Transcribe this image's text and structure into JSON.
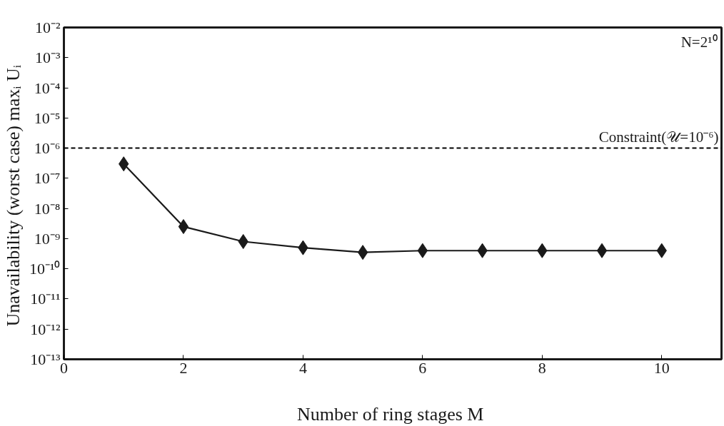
{
  "chart_data": {
    "type": "line",
    "xlabel": "Number of ring stages  M",
    "ylabel": "Unavailability (worst case)  maxᵢ Uᵢ",
    "x": [
      1,
      2,
      3,
      4,
      5,
      6,
      7,
      8,
      9,
      10
    ],
    "series": [
      {
        "color": "#1a1a1a",
        "values": [
          3e-07,
          2.5e-09,
          8e-10,
          5e-10,
          3.5e-10,
          4e-10,
          4e-10,
          4e-10,
          4e-10,
          4e-10
        ]
      }
    ],
    "xlim": [
      0,
      11
    ],
    "xticks": [
      0,
      2,
      4,
      6,
      8,
      10
    ],
    "ylim": [
      1e-13,
      0.01
    ],
    "yticks": [
      {
        "value": 1e-13,
        "label": "10⁻¹³"
      },
      {
        "value": 1e-12,
        "label": "10⁻¹²"
      },
      {
        "value": 1e-11,
        "label": "10⁻¹¹"
      },
      {
        "value": 1e-10,
        "label": "10⁻¹⁰"
      },
      {
        "value": 1e-09,
        "label": "10⁻⁹"
      },
      {
        "value": 1e-08,
        "label": "10⁻⁸"
      },
      {
        "value": 1e-07,
        "label": "10⁻⁷"
      },
      {
        "value": 1e-06,
        "label": "10⁻⁶"
      },
      {
        "value": 1e-05,
        "label": "10⁻⁵"
      },
      {
        "value": 0.0001,
        "label": "10⁻⁴"
      },
      {
        "value": 0.001,
        "label": "10⁻³"
      },
      {
        "value": 0.01,
        "label": "10⁻²"
      }
    ],
    "log": "y",
    "grid": false,
    "marker": "diamond",
    "line_style": "solid",
    "ref_lines": [
      {
        "axis": "y",
        "value": 1e-06,
        "color": "#000000",
        "line_style": "dashed"
      }
    ],
    "annotations": [
      "N=2¹⁰",
      {
        "text": "Constraint(𝒰=10⁻⁶)",
        "x": 11,
        "y": 1e-06
      }
    ]
  }
}
